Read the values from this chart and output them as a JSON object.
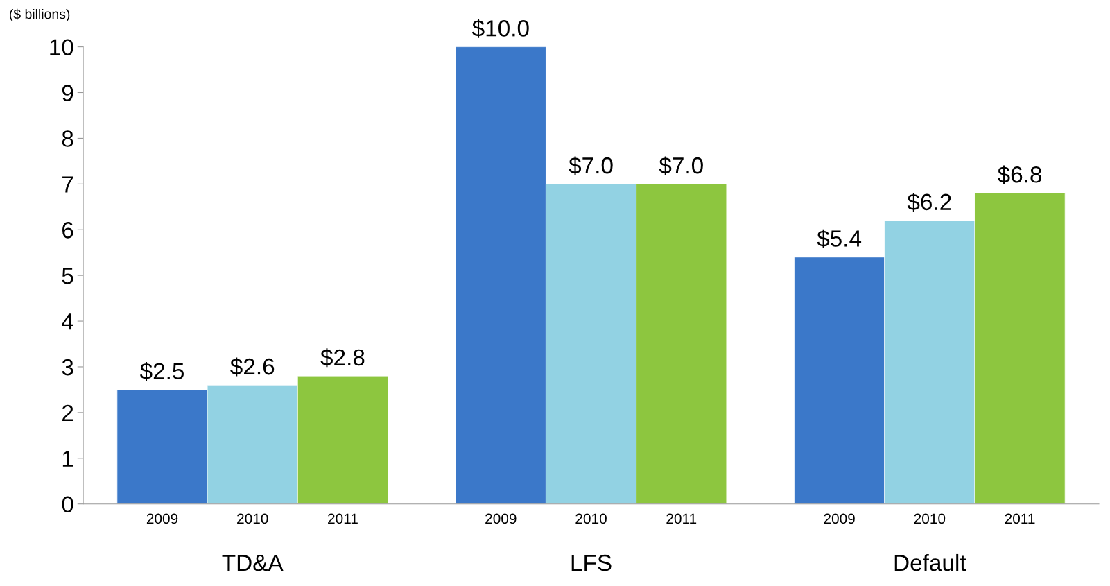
{
  "chart_data": {
    "type": "bar",
    "ylabel": "($ billions)",
    "categories": [
      "TD&A",
      "LFS",
      "Default"
    ],
    "series": [
      {
        "name": "2009",
        "color": "#3b78c9",
        "values": [
          2.5,
          10.0,
          5.4
        ],
        "value_labels": [
          "$2.5",
          "$10.0",
          "$5.4"
        ]
      },
      {
        "name": "2010",
        "color": "#92d2e3",
        "values": [
          2.6,
          7.0,
          6.2
        ],
        "value_labels": [
          "$2.6",
          "$7.0",
          "$6.2"
        ]
      },
      {
        "name": "2011",
        "color": "#8dc63f",
        "values": [
          2.8,
          7.0,
          6.8
        ],
        "value_labels": [
          "$2.8",
          "$7.0",
          "$6.8"
        ]
      }
    ],
    "ylim": [
      0,
      10
    ],
    "yticks": [
      0,
      1,
      2,
      3,
      4,
      5,
      6,
      7,
      8,
      9,
      10
    ],
    "grid": false,
    "legend": false
  }
}
